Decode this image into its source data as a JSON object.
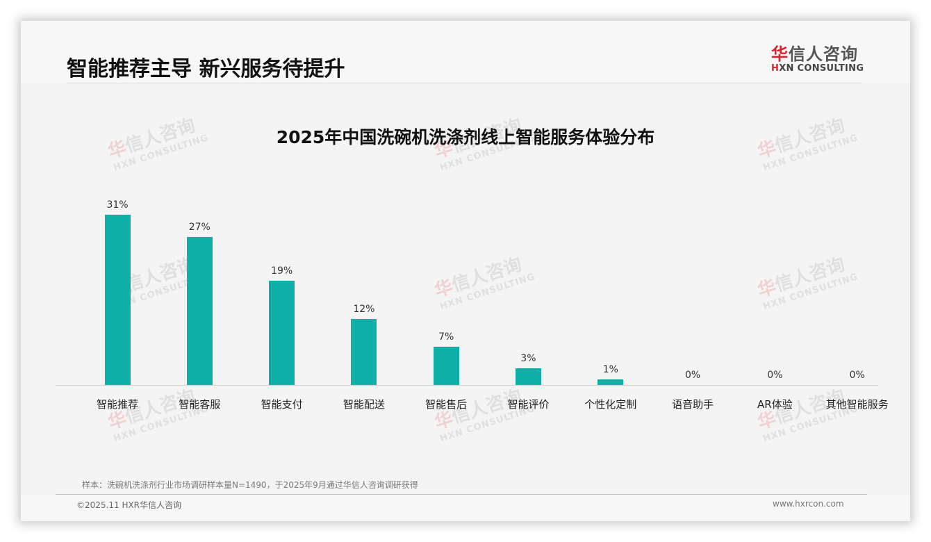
{
  "page": {
    "title": "智能推荐主导 新兴服务待提升"
  },
  "logo": {
    "cn_first": "华",
    "cn_rest": "信人咨询",
    "en_first": "H",
    "en_rest": "XN CONSULTING"
  },
  "watermark": {
    "cn_first": "华",
    "cn_rest": "信人咨询",
    "en": "HXN CONSULTING"
  },
  "colors": {
    "bar": "#0fb0a8",
    "brand_red": "#d9232e"
  },
  "chart_data": {
    "type": "bar",
    "title": "2025年中国洗碗机洗涤剂线上智能服务体验分布",
    "categories": [
      "智能推荐",
      "智能客服",
      "智能支付",
      "智能配送",
      "智能售后",
      "智能评价",
      "个性化定制",
      "语音助手",
      "AR体验",
      "其他智能服务"
    ],
    "values": [
      31,
      27,
      19,
      12,
      7,
      3,
      1,
      0,
      0,
      0
    ],
    "labels": [
      "31%",
      "27%",
      "19%",
      "12%",
      "7%",
      "3%",
      "1%",
      "0%",
      "0%",
      "0%"
    ],
    "xlabel": "",
    "ylabel": "",
    "unit": "%",
    "ylim": [
      0,
      35
    ],
    "grid": false,
    "legend": "none",
    "y_axis_visible": false
  },
  "footer": {
    "note": "样本：洗碗机洗涤剂行业市场调研样本量N=1490，于2025年9月通过华信人咨询调研获得",
    "copyright": "©2025.11 HXR华信人咨询",
    "website": "www.hxrcon.com"
  }
}
